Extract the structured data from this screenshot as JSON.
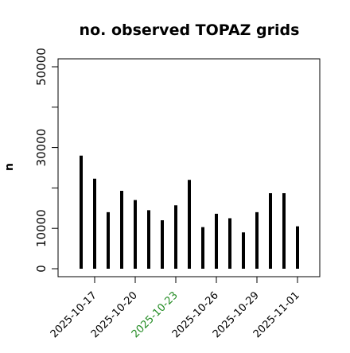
{
  "chart_data": {
    "type": "bar",
    "title": "no. observed TOPAZ grids",
    "xlabel": "",
    "ylabel": "n",
    "ylim": [
      0,
      50000
    ],
    "yticks": [
      0,
      10000,
      30000,
      50000
    ],
    "y_minor_ticks": [
      20000,
      40000
    ],
    "grid": false,
    "dates": [
      "2025-10-16",
      "2025-10-17",
      "2025-10-18",
      "2025-10-19",
      "2025-10-20",
      "2025-10-21",
      "2025-10-22",
      "2025-10-23",
      "2025-10-24",
      "2025-10-25",
      "2025-10-26",
      "2025-10-27",
      "2025-10-28",
      "2025-10-29",
      "2025-10-30",
      "2025-10-31",
      "2025-11-01"
    ],
    "values": [
      28000,
      22300,
      14000,
      19300,
      17000,
      14500,
      12000,
      15700,
      22000,
      10300,
      13600,
      12500,
      9000,
      14000,
      18700,
      18700,
      10500
    ],
    "x_tick_labels": [
      {
        "label": "2025-10-17",
        "color": "#000000"
      },
      {
        "label": "2025-10-20",
        "color": "#000000"
      },
      {
        "label": "2025-10-23",
        "color": "#228B22"
      },
      {
        "label": "2025-10-26",
        "color": "#000000"
      },
      {
        "label": "2025-10-29",
        "color": "#000000"
      },
      {
        "label": "2025-11-01",
        "color": "#000000"
      }
    ],
    "bar_color": "#000000"
  }
}
